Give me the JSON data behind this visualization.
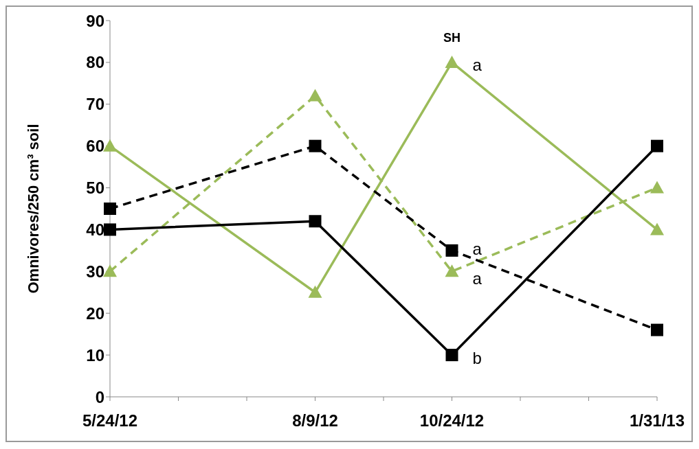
{
  "chart_data": {
    "type": "line",
    "ylabel": "Omnivores/250 cm³ soil",
    "categories": [
      "5/24/12",
      null,
      null,
      "8/9/12",
      null,
      "10/24/12",
      null,
      null,
      "1/31/13"
    ],
    "series": [
      {
        "color": "#9bbb59",
        "values": [
          60,
          null,
          null,
          25,
          null,
          80,
          null,
          null,
          40
        ],
        "marker": "triangle",
        "line_style": "solid"
      },
      {
        "color": "#9bbb59",
        "values": [
          30,
          null,
          null,
          72,
          null,
          30,
          null,
          null,
          50
        ],
        "marker": "triangle",
        "line_style": "dashed"
      },
      {
        "color": "#000000",
        "values": [
          40,
          null,
          null,
          42,
          null,
          10,
          null,
          null,
          60
        ],
        "marker": "square",
        "line_style": "solid"
      },
      {
        "color": "#000000",
        "values": [
          45,
          null,
          null,
          60,
          null,
          35,
          null,
          null,
          16
        ],
        "marker": "square",
        "line_style": "dashed"
      }
    ],
    "annotations": [
      {
        "text": "SH",
        "x": "10/24/12",
        "y": 80
      },
      {
        "text": "a",
        "x": "10/24/12",
        "y": 80
      },
      {
        "text": "a",
        "x": "10/24/12",
        "y": 36
      },
      {
        "text": "a",
        "x": "10/24/12",
        "y": 29
      },
      {
        "text": "b",
        "x": "10/24/12",
        "y": 10
      }
    ],
    "ylim": [
      0,
      90
    ],
    "yticks": [
      0,
      10,
      20,
      30,
      40,
      50,
      60,
      70,
      80,
      90
    ],
    "grid": false
  }
}
